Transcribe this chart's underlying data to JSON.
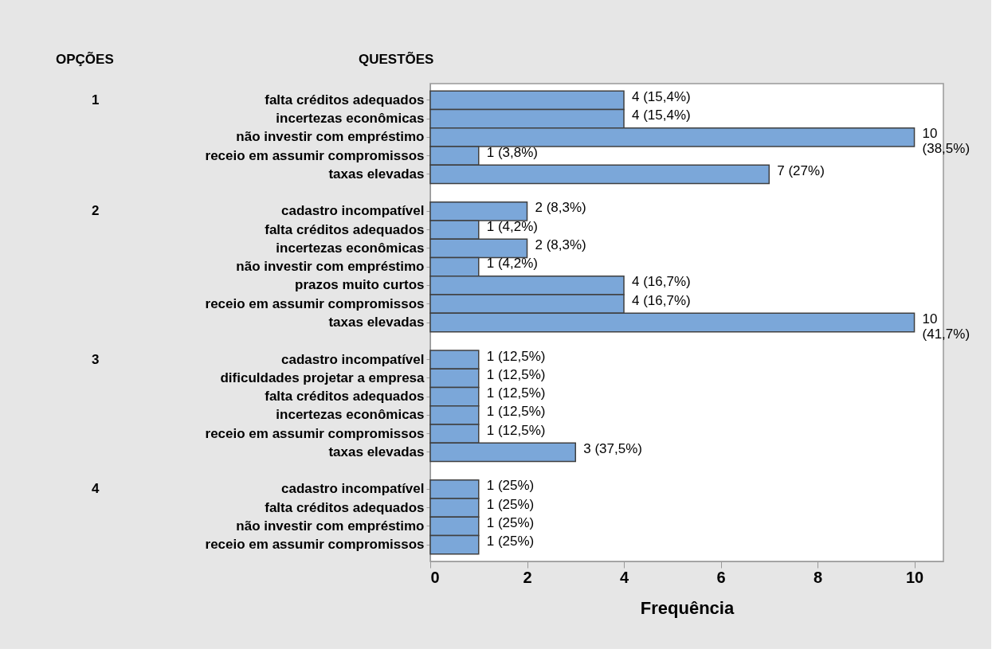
{
  "chart_data": {
    "type": "bar",
    "orientation": "horizontal",
    "xlabel": "Frequência",
    "categories": [
      "falta créditos adequados",
      "incertezas econômicas",
      "não investir com empréstimo",
      "receio em assumir compromissos",
      "taxas elevadas",
      null,
      "cadastro incompatível",
      "falta créditos adequados",
      "incertezas econômicas",
      "não investir com empréstimo",
      "prazos muito curtos",
      "receio em assumir compromissos",
      "taxas elevadas",
      null,
      "cadastro incompatível",
      "dificuldades projetar a empresa",
      "falta créditos adequados",
      "incertezas econômicas",
      "receio em assumir compromissos",
      "taxas elevadas",
      null,
      "cadastro incompatível",
      "falta créditos adequados",
      "não investir com empréstimo",
      "receio em assumir compromissos"
    ],
    "values": [
      4,
      4,
      10,
      1,
      7,
      null,
      2,
      1,
      2,
      1,
      4,
      4,
      10,
      null,
      1,
      1,
      1,
      1,
      1,
      3,
      null,
      1,
      1,
      1,
      1
    ],
    "value_labels": [
      "4  (15,4%)",
      "4  (15,4%)",
      "10\n(38,5%)",
      "1  (3,8%)",
      "7  (27%)",
      null,
      "2  (8,3%)",
      "1 (4,2%)",
      "2  (8,3%)",
      "1 (4,2%)",
      "4  (16,7%)",
      "4  (16,7%)",
      "10\n(41,7%)",
      null,
      "1 (12,5%)",
      "1 (12,5%)",
      "1 (12,5%)",
      "1 (12,5%)",
      "1 (12,5%)",
      "3 (37,5%)",
      null,
      "1 (25%)",
      "1 (25%)",
      "1 (25%)",
      "1 (25%)"
    ],
    "color": "#7ba7d9",
    "xlim": [
      0,
      10.6
    ],
    "xticks": [
      0,
      2,
      4,
      6,
      8,
      10
    ],
    "grid": false,
    "annotations": [
      "OPÇÕES",
      "QUESTÕES",
      "1",
      "2",
      "3",
      "4"
    ]
  }
}
